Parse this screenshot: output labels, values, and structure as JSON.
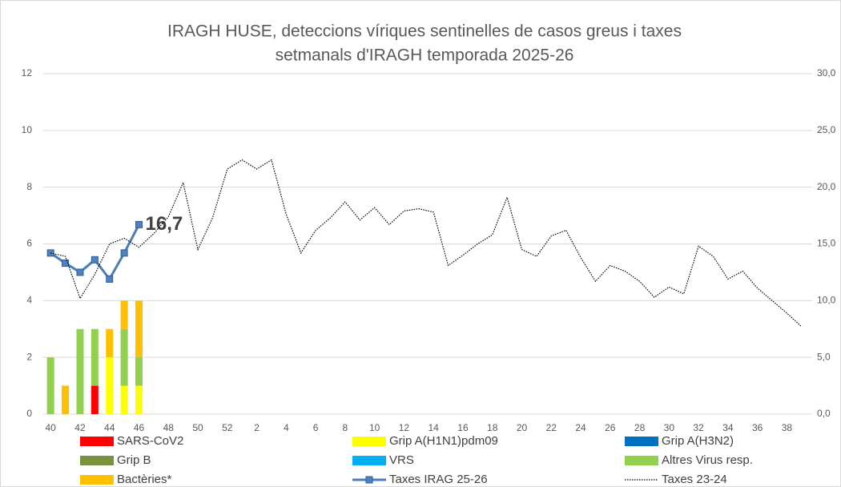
{
  "chart_data": {
    "type": "combo",
    "title": [
      "IRAGH  HUSE, deteccions víriques sentinelles de casos greus i taxes",
      "setmanals d'IRAGH temporada 2025-26"
    ],
    "categories": [
      "40",
      null,
      "42",
      null,
      "44",
      null,
      "46",
      null,
      "48",
      null,
      "50",
      null,
      "52",
      null,
      "2",
      null,
      "4",
      null,
      "6",
      null,
      "8",
      null,
      "10",
      null,
      "12",
      null,
      "14",
      null,
      "16",
      null,
      "18",
      null,
      "20",
      null,
      "22",
      null,
      "24",
      null,
      "26",
      null,
      "28",
      null,
      "30",
      null,
      "32",
      null,
      "34",
      null,
      "36",
      null,
      "38",
      null
    ],
    "ylim": [
      0,
      12
    ],
    "yticks": [
      0,
      2,
      4,
      6,
      8,
      10,
      12
    ],
    "y2lim": [
      0,
      30
    ],
    "y2ticks": [
      {
        "value": 0,
        "label": "0,0"
      },
      {
        "value": 5,
        "label": "5,0"
      },
      {
        "value": 10,
        "label": "10,0"
      },
      {
        "value": 15,
        "label": "15,0"
      },
      {
        "value": 20,
        "label": "20,0"
      },
      {
        "value": 25,
        "label": "25,0"
      },
      {
        "value": 30,
        "label": "30,0"
      }
    ],
    "grid": true,
    "series": [
      {
        "name": "SARS-CoV2",
        "type": "bar",
        "color": "#ff0000",
        "values": [
          null,
          null,
          null,
          1,
          null,
          null,
          null,
          null,
          null,
          null,
          null,
          null,
          null,
          null,
          null,
          null,
          null,
          null,
          null,
          null,
          null,
          null,
          null,
          null,
          null,
          null,
          null,
          null,
          null,
          null,
          null,
          null,
          null,
          null,
          null,
          null,
          null,
          null,
          null,
          null,
          null,
          null,
          null,
          null,
          null,
          null,
          null,
          null,
          null,
          null,
          null,
          null
        ]
      },
      {
        "name": "Grip A(H1N1)pdm09",
        "type": "bar",
        "color": "#ffff00",
        "values": [
          null,
          null,
          null,
          null,
          2,
          1,
          1,
          null,
          null,
          null,
          null,
          null,
          null,
          null,
          null,
          null,
          null,
          null,
          null,
          null,
          null,
          null,
          null,
          null,
          null,
          null,
          null,
          null,
          null,
          null,
          null,
          null,
          null,
          null,
          null,
          null,
          null,
          null,
          null,
          null,
          null,
          null,
          null,
          null,
          null,
          null,
          null,
          null,
          null,
          null,
          null,
          null
        ]
      },
      {
        "name": "Grip A(H3N2)",
        "type": "bar",
        "color": "#0070c0",
        "values": [
          null,
          null,
          null,
          null,
          null,
          null,
          null,
          null,
          null,
          null,
          null,
          null,
          null,
          null,
          null,
          null,
          null,
          null,
          null,
          null,
          null,
          null,
          null,
          null,
          null,
          null,
          null,
          null,
          null,
          null,
          null,
          null,
          null,
          null,
          null,
          null,
          null,
          null,
          null,
          null,
          null,
          null,
          null,
          null,
          null,
          null,
          null,
          null,
          null,
          null,
          null,
          null
        ]
      },
      {
        "name": "Grip B",
        "type": "bar",
        "color": "#77933c",
        "values": [
          null,
          null,
          null,
          null,
          null,
          null,
          null,
          null,
          null,
          null,
          null,
          null,
          null,
          null,
          null,
          null,
          null,
          null,
          null,
          null,
          null,
          null,
          null,
          null,
          null,
          null,
          null,
          null,
          null,
          null,
          null,
          null,
          null,
          null,
          null,
          null,
          null,
          null,
          null,
          null,
          null,
          null,
          null,
          null,
          null,
          null,
          null,
          null,
          null,
          null,
          null,
          null
        ]
      },
      {
        "name": "VRS",
        "type": "bar",
        "color": "#00b0f0",
        "values": [
          null,
          null,
          null,
          null,
          null,
          null,
          null,
          null,
          null,
          null,
          null,
          null,
          null,
          null,
          null,
          null,
          null,
          null,
          null,
          null,
          null,
          null,
          null,
          null,
          null,
          null,
          null,
          null,
          null,
          null,
          null,
          null,
          null,
          null,
          null,
          null,
          null,
          null,
          null,
          null,
          null,
          null,
          null,
          null,
          null,
          null,
          null,
          null,
          null,
          null,
          null,
          null
        ]
      },
      {
        "name": "Altres Virus resp.",
        "type": "bar",
        "color": "#92d050",
        "values": [
          2,
          null,
          3,
          2,
          null,
          2,
          1,
          null,
          null,
          null,
          null,
          null,
          null,
          null,
          null,
          null,
          null,
          null,
          null,
          null,
          null,
          null,
          null,
          null,
          null,
          null,
          null,
          null,
          null,
          null,
          null,
          null,
          null,
          null,
          null,
          null,
          null,
          null,
          null,
          null,
          null,
          null,
          null,
          null,
          null,
          null,
          null,
          null,
          null,
          null,
          null,
          null
        ]
      },
      {
        "name": "Bactèries*",
        "type": "bar",
        "color": "#ffc000",
        "values": [
          null,
          1,
          null,
          null,
          1,
          1,
          2,
          null,
          null,
          null,
          null,
          null,
          null,
          null,
          null,
          null,
          null,
          null,
          null,
          null,
          null,
          null,
          null,
          null,
          null,
          null,
          null,
          null,
          null,
          null,
          null,
          null,
          null,
          null,
          null,
          null,
          null,
          null,
          null,
          null,
          null,
          null,
          null,
          null,
          null,
          null,
          null,
          null,
          null,
          null,
          null,
          null
        ]
      },
      {
        "name": "Taxes IRAG 25-26",
        "type": "line",
        "axis": "y2",
        "color": "#4a7ebb",
        "marker": "square",
        "values": [
          14.2,
          13.3,
          12.5,
          13.6,
          11.9,
          14.2,
          16.7,
          null,
          null,
          null,
          null,
          null,
          null,
          null,
          null,
          null,
          null,
          null,
          null,
          null,
          null,
          null,
          null,
          null,
          null,
          null,
          null,
          null,
          null,
          null,
          null,
          null,
          null,
          null,
          null,
          null,
          null,
          null,
          null,
          null,
          null,
          null,
          null,
          null,
          null,
          null,
          null,
          null,
          null,
          null,
          null,
          null
        ],
        "value_labels": [
          null,
          null,
          null,
          null,
          null,
          null,
          "16,7",
          null,
          null,
          null,
          null,
          null,
          null,
          null,
          null,
          null,
          null,
          null,
          null,
          null,
          null,
          null,
          null,
          null,
          null,
          null,
          null,
          null,
          null,
          null,
          null,
          null,
          null,
          null,
          null,
          null,
          null,
          null,
          null,
          null,
          null,
          null,
          null,
          null,
          null,
          null,
          null,
          null,
          null,
          null,
          null,
          null
        ]
      },
      {
        "name": "Taxes 23-24",
        "type": "line",
        "axis": "y2",
        "color": "#000000",
        "style": "dotted",
        "values": [
          14.2,
          13.9,
          10.2,
          12.3,
          15.0,
          15.5,
          14.7,
          15.9,
          17.4,
          20.4,
          14.5,
          17.3,
          21.6,
          22.4,
          21.6,
          22.4,
          17.6,
          14.2,
          16.2,
          17.3,
          18.7,
          17.1,
          18.2,
          16.7,
          17.9,
          18.1,
          17.8,
          13.1,
          14.0,
          15.0,
          15.8,
          19.1,
          14.5,
          13.9,
          15.7,
          16.2,
          13.8,
          11.7,
          13.1,
          12.6,
          11.7,
          10.3,
          11.2,
          10.6,
          14.8,
          13.9,
          11.9,
          12.6,
          11.1,
          10.0,
          8.9,
          7.7
        ]
      }
    ]
  }
}
